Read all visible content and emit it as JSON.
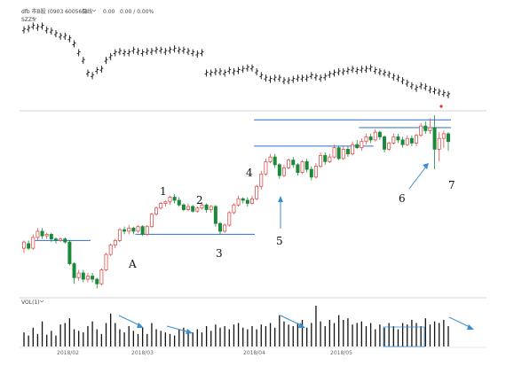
{
  "header": {
    "ticker_line": "dfb 市B股 (0903 600566)",
    "period": "日线",
    "value": "0.00",
    "change": "0.00 / 0.00%"
  },
  "index_panel": {
    "label": "SZZS"
  },
  "volume_panel": {
    "label": "VOL(1)"
  },
  "annotations": [
    "1",
    "2",
    "3",
    "4",
    "5",
    "6",
    "7",
    "A"
  ],
  "x_tick_labels": [
    "2018/02",
    "2018/03",
    "2018/04",
    "2018/05"
  ],
  "colors": {
    "up": "#d9534f",
    "down": "#1a8a3a",
    "index": "#111111",
    "levels": "#2a6fc9",
    "arrow": "#3a8fd0"
  },
  "chart_data": {
    "type": "candlestick",
    "price_ylim": [
      0,
      100
    ],
    "candles": [
      [
        22,
        26,
        19,
        27
      ],
      [
        25,
        22,
        21,
        27
      ],
      [
        22,
        29,
        21,
        31
      ],
      [
        29,
        33,
        27,
        35
      ],
      [
        33,
        30,
        28,
        35
      ],
      [
        30,
        31,
        28,
        32
      ],
      [
        31,
        28,
        26,
        32
      ],
      [
        28,
        27,
        25,
        29
      ],
      [
        27,
        28,
        26,
        29
      ],
      [
        28,
        26,
        25,
        29
      ],
      [
        26,
        12,
        11,
        27
      ],
      [
        12,
        3,
        -1,
        13
      ],
      [
        3,
        6,
        1,
        8
      ],
      [
        6,
        2,
        0,
        8
      ],
      [
        2,
        4,
        0,
        6
      ],
      [
        4,
        2,
        0,
        6
      ],
      [
        2,
        -1,
        -4,
        3
      ],
      [
        -1,
        8,
        -2,
        9
      ],
      [
        8,
        18,
        7,
        19
      ],
      [
        18,
        24,
        17,
        25
      ],
      [
        24,
        27,
        22,
        28
      ],
      [
        27,
        34,
        26,
        35
      ],
      [
        34,
        33,
        31,
        36
      ],
      [
        33,
        35,
        31,
        37
      ],
      [
        35,
        33,
        31,
        36
      ],
      [
        33,
        36,
        32,
        37
      ],
      [
        36,
        31,
        30,
        37
      ],
      [
        31,
        36,
        30,
        37
      ],
      [
        36,
        44,
        35,
        45
      ],
      [
        44,
        48,
        43,
        49
      ],
      [
        48,
        51,
        47,
        52
      ],
      [
        51,
        52,
        49,
        53
      ],
      [
        52,
        55,
        50,
        56
      ],
      [
        55,
        53,
        51,
        57
      ],
      [
        53,
        50,
        49,
        55
      ],
      [
        50,
        47,
        46,
        51
      ],
      [
        47,
        49,
        46,
        51
      ],
      [
        49,
        46,
        45,
        50
      ],
      [
        46,
        48,
        45,
        49
      ],
      [
        48,
        50,
        47,
        51
      ],
      [
        50,
        47,
        45,
        51
      ],
      [
        47,
        49,
        45,
        50
      ],
      [
        49,
        38,
        36,
        50
      ],
      [
        38,
        33,
        31,
        39
      ],
      [
        33,
        37,
        32,
        38
      ],
      [
        37,
        45,
        36,
        46
      ],
      [
        45,
        50,
        44,
        51
      ],
      [
        50,
        54,
        49,
        56
      ],
      [
        54,
        53,
        51,
        55
      ],
      [
        53,
        51,
        49,
        55
      ],
      [
        51,
        54,
        50,
        56
      ],
      [
        54,
        62,
        53,
        63
      ],
      [
        62,
        70,
        60,
        72
      ],
      [
        70,
        78,
        69,
        80
      ],
      [
        78,
        81,
        77,
        83
      ],
      [
        81,
        76,
        74,
        83
      ],
      [
        76,
        69,
        67,
        77
      ],
      [
        69,
        74,
        68,
        76
      ],
      [
        74,
        79,
        73,
        80
      ],
      [
        79,
        76,
        74,
        81
      ],
      [
        76,
        71,
        69,
        77
      ],
      [
        71,
        78,
        70,
        79
      ],
      [
        78,
        73,
        71,
        80
      ],
      [
        73,
        68,
        66,
        75
      ],
      [
        68,
        75,
        67,
        77
      ],
      [
        75,
        82,
        74,
        84
      ],
      [
        82,
        78,
        76,
        84
      ],
      [
        78,
        81,
        77,
        83
      ],
      [
        81,
        87,
        80,
        89
      ],
      [
        87,
        80,
        79,
        88
      ],
      [
        80,
        86,
        79,
        88
      ],
      [
        86,
        83,
        81,
        88
      ],
      [
        83,
        89,
        82,
        91
      ],
      [
        89,
        87,
        86,
        92
      ],
      [
        87,
        91,
        85,
        93
      ],
      [
        91,
        94,
        89,
        96
      ],
      [
        94,
        92,
        90,
        96
      ],
      [
        92,
        97,
        91,
        99
      ],
      [
        97,
        94,
        92,
        98
      ],
      [
        94,
        86,
        84,
        95
      ],
      [
        86,
        90,
        85,
        91
      ],
      [
        90,
        94,
        89,
        96
      ],
      [
        94,
        92,
        90,
        96
      ],
      [
        92,
        89,
        87,
        94
      ],
      [
        89,
        93,
        88,
        95
      ],
      [
        93,
        90,
        88,
        95
      ],
      [
        90,
        95,
        88,
        96
      ],
      [
        95,
        101,
        94,
        103
      ],
      [
        101,
        98,
        96,
        104
      ],
      [
        98,
        100,
        96,
        106
      ],
      [
        100,
        86,
        73,
        108
      ],
      [
        86,
        93,
        78,
        97
      ],
      [
        93,
        96,
        87,
        98
      ],
      [
        96,
        91,
        85,
        97
      ]
    ],
    "index_series": [
      96,
      97,
      99,
      98,
      99,
      96,
      95,
      93,
      91,
      91,
      89,
      85,
      78,
      72,
      62,
      60,
      64,
      65,
      72,
      75,
      78,
      79,
      78,
      78,
      80,
      79,
      78,
      79,
      79,
      80,
      80,
      79,
      80,
      81,
      80,
      80,
      79,
      78,
      77,
      78,
      62,
      62,
      63,
      63,
      62,
      64,
      63,
      64,
      65,
      66,
      66,
      63,
      60,
      58,
      57,
      58,
      58,
      56,
      56,
      57,
      58,
      58,
      58,
      60,
      59,
      58,
      59,
      61,
      62,
      63,
      63,
      64,
      65,
      64,
      65,
      65,
      66,
      64,
      63,
      62,
      61,
      59,
      58,
      56,
      54,
      52,
      50,
      52,
      51,
      49,
      48,
      47,
      46,
      45
    ],
    "volume": [
      18,
      14,
      24,
      16,
      32,
      15,
      20,
      14,
      28,
      30,
      36,
      22,
      20,
      18,
      26,
      32,
      22,
      16,
      30,
      42,
      30,
      22,
      18,
      26,
      20,
      16,
      24,
      16,
      30,
      22,
      20,
      18,
      16,
      14,
      22,
      24,
      20,
      18,
      22,
      18,
      26,
      20,
      28,
      24,
      26,
      22,
      28,
      30,
      24,
      22,
      26,
      22,
      28,
      26,
      30,
      24,
      40,
      32,
      28,
      26,
      30,
      34,
      24,
      30,
      52,
      32,
      26,
      34,
      30,
      40,
      34,
      36,
      28,
      30,
      32,
      26,
      30,
      22,
      28,
      24,
      30,
      26,
      22,
      30,
      28,
      34,
      30,
      26,
      36,
      28,
      32,
      30,
      34,
      26
    ],
    "levels": [
      {
        "y": 27,
        "from": 3,
        "to": 14
      },
      {
        "y": 31,
        "from": 25,
        "to": 50
      },
      {
        "y": 88,
        "from": 51,
        "to": 76
      },
      {
        "y": 105,
        "from": 51,
        "to": 93
      },
      {
        "y": 100,
        "from": 74,
        "to": 93
      }
    ]
  }
}
